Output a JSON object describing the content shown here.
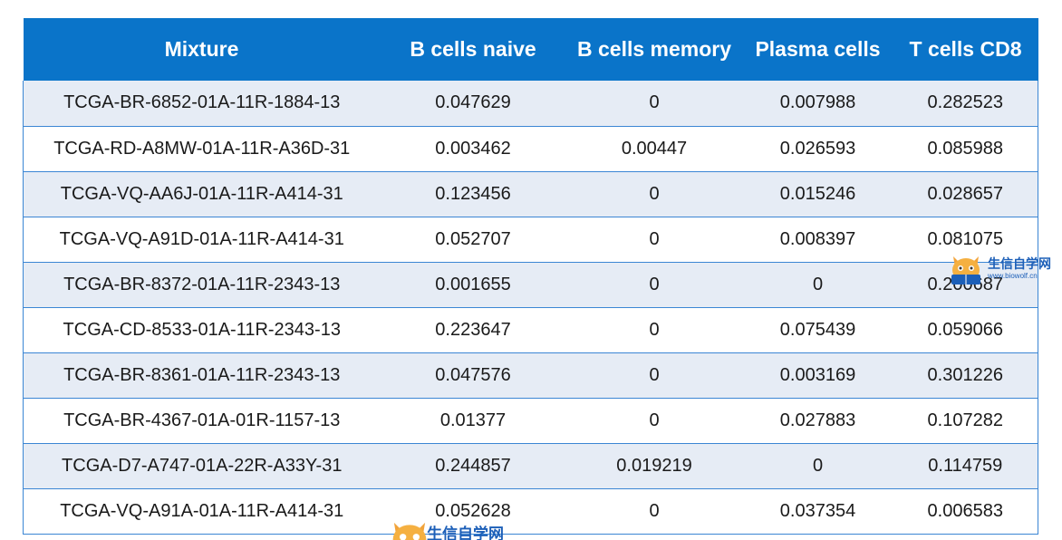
{
  "table": {
    "headers": [
      "Mixture",
      "B cells naive",
      "B cells memory",
      "Plasma cells",
      "T cells CD8"
    ],
    "rows": [
      [
        "TCGA-BR-6852-01A-11R-1884-13",
        "0.047629",
        "0",
        "0.007988",
        "0.282523"
      ],
      [
        "TCGA-RD-A8MW-01A-11R-A36D-31",
        "0.003462",
        "0.00447",
        "0.026593",
        "0.085988"
      ],
      [
        "TCGA-VQ-AA6J-01A-11R-A414-31",
        "0.123456",
        "0",
        "0.015246",
        "0.028657"
      ],
      [
        "TCGA-VQ-A91D-01A-11R-A414-31",
        "0.052707",
        "0",
        "0.008397",
        "0.081075"
      ],
      [
        "TCGA-BR-8372-01A-11R-2343-13",
        "0.001655",
        "0",
        "0",
        "0.200687"
      ],
      [
        "TCGA-CD-8533-01A-11R-2343-13",
        "0.223647",
        "0",
        "0.075439",
        "0.059066"
      ],
      [
        "TCGA-BR-8361-01A-11R-2343-13",
        "0.047576",
        "0",
        "0.003169",
        "0.301226"
      ],
      [
        "TCGA-BR-4367-01A-01R-1157-13",
        "0.01377",
        "0",
        "0.027883",
        "0.107282"
      ],
      [
        "TCGA-D7-A747-01A-22R-A33Y-31",
        "0.244857",
        "0.019219",
        "0",
        "0.114759"
      ],
      [
        "TCGA-VQ-A91A-01A-11R-A414-31",
        "0.052628",
        "0",
        "0.037354",
        "0.006583"
      ]
    ]
  },
  "watermark": {
    "title": "生信自学网",
    "url": "www.biowolf.cn"
  },
  "colors": {
    "header_bg": "#0a74c9",
    "row_alt_bg": "#e6ecf5",
    "border": "#3b86d4"
  }
}
